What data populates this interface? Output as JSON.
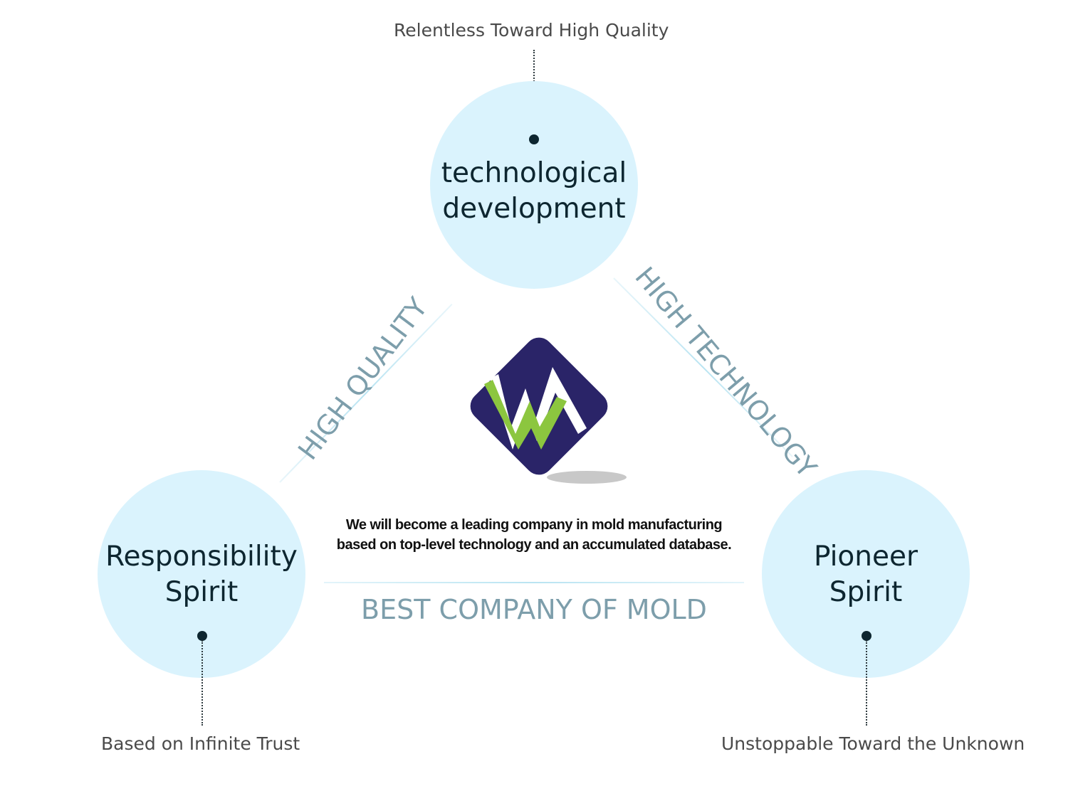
{
  "top": {
    "caption": "Relentless Toward High Quality",
    "line1": "technological",
    "line2": "development"
  },
  "left": {
    "caption": "Based on Infinite Trust",
    "line1": "Responsibility",
    "line2": "Spirit"
  },
  "right": {
    "caption": "Unstoppable Toward the Unknown",
    "line1": "Pioneer",
    "line2": "Spirit"
  },
  "edges": {
    "left": "HIGH QUALITY",
    "right": "HIGH TECHNOLOGY"
  },
  "mission": {
    "line1": "We will become a leading company in mold manufacturing",
    "line2": "based on top-level technology and an accumulated database."
  },
  "tagline": "BEST COMPANY OF MOLD",
  "colors": {
    "circle": "#daf3fd",
    "logo_navy": "#2a2468",
    "logo_green": "#8cc63f",
    "accent_text": "#7d9eab"
  }
}
